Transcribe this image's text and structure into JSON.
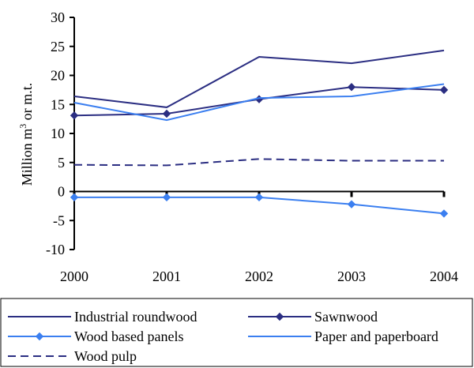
{
  "chart_data": {
    "type": "line",
    "title": "",
    "ylabel_parts": [
      "Million m",
      "3",
      " or m.t."
    ],
    "x": [
      "2000",
      "2001",
      "2002",
      "2003",
      "2004"
    ],
    "ylim": [
      -10,
      30
    ],
    "yticks": [
      -10,
      -5,
      0,
      5,
      10,
      15,
      20,
      25,
      30
    ],
    "ytick_labels": [
      "-10",
      "-5",
      "0",
      "5",
      "10",
      "15",
      "20",
      "25",
      "30"
    ],
    "grid": false,
    "legend_position": "bottom",
    "series": [
      {
        "name": "Industrial roundwood",
        "values": [
          16.4,
          14.5,
          23.2,
          22.1,
          24.3
        ],
        "color": "#2b2e82",
        "marker": "none",
        "dash": "solid"
      },
      {
        "name": "Sawnwood",
        "values": [
          13.1,
          13.4,
          15.9,
          18.0,
          17.5
        ],
        "color": "#2b2e82",
        "marker": "diamond",
        "dash": "solid"
      },
      {
        "name": "Wood based panels",
        "values": [
          -1.0,
          -1.0,
          -1.0,
          -2.2,
          -3.8
        ],
        "color": "#3b7ff0",
        "marker": "diamond",
        "dash": "solid"
      },
      {
        "name": "Paper and paperboard",
        "values": [
          15.3,
          12.3,
          16.1,
          16.4,
          18.5
        ],
        "color": "#3b7ff0",
        "marker": "none",
        "dash": "solid"
      },
      {
        "name": "Wood pulp",
        "values": [
          4.6,
          4.5,
          5.6,
          5.3,
          5.3
        ],
        "color": "#2b2e82",
        "marker": "none",
        "dash": "dashed"
      }
    ]
  }
}
